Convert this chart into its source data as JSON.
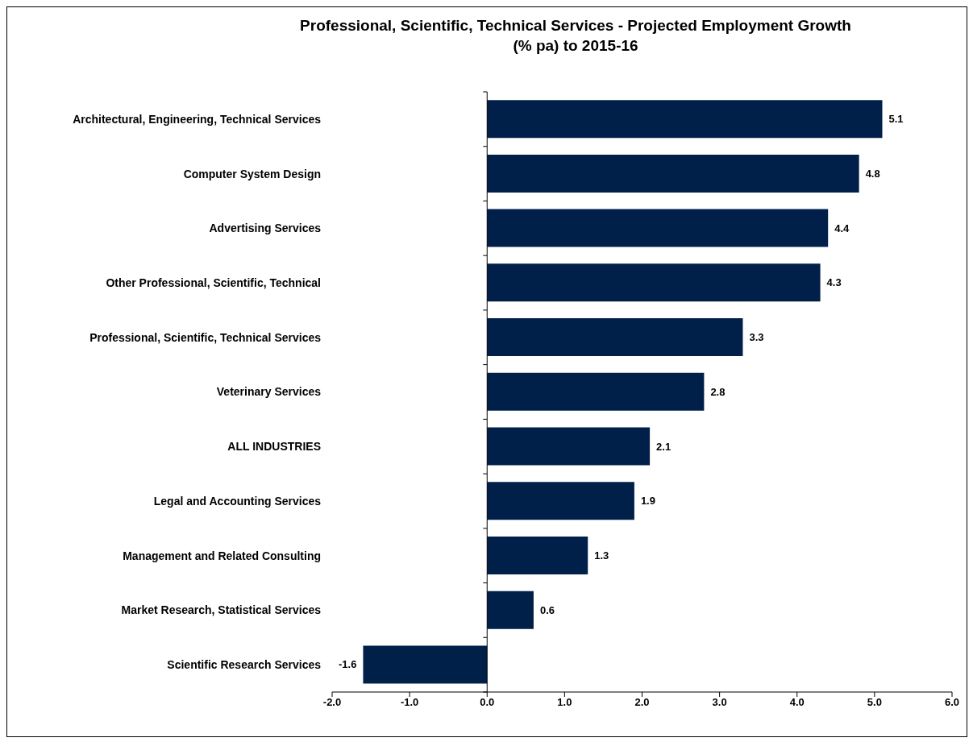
{
  "chart_data": {
    "type": "bar",
    "orientation": "horizontal",
    "title": "Professional, Scientific, Technical Services - Projected Employment Growth\n(% pa) to 2015-16",
    "categories": [
      "Architectural, Engineering,  Technical Services",
      "Computer System Design",
      "Advertising Services",
      "Other Professional, Scientific, Technical",
      "Professional, Scientific, Technical Services",
      "Veterinary Services",
      "ALL INDUSTRIES",
      "Legal and Accounting  Services",
      "Management and Related Consulting",
      "Market Research, Statistical Services",
      "Scientific Research Services"
    ],
    "values": [
      5.1,
      4.8,
      4.4,
      4.3,
      3.3,
      2.8,
      2.1,
      1.9,
      1.3,
      0.6,
      -1.6
    ],
    "color": "#00204a",
    "xlim": [
      -2,
      6
    ],
    "xticks": [
      {
        "value": -2,
        "label": "-2.0"
      },
      {
        "value": -1,
        "label": "-1.0"
      },
      {
        "value": 0,
        "label": "0.0"
      },
      {
        "value": 1,
        "label": "1.0"
      },
      {
        "value": 2,
        "label": "2.0"
      },
      {
        "value": 3,
        "label": "3.0"
      },
      {
        "value": 4,
        "label": "4.0"
      },
      {
        "value": 5,
        "label": "5.0"
      },
      {
        "value": 6,
        "label": "6.0"
      }
    ],
    "data_labels": true
  }
}
